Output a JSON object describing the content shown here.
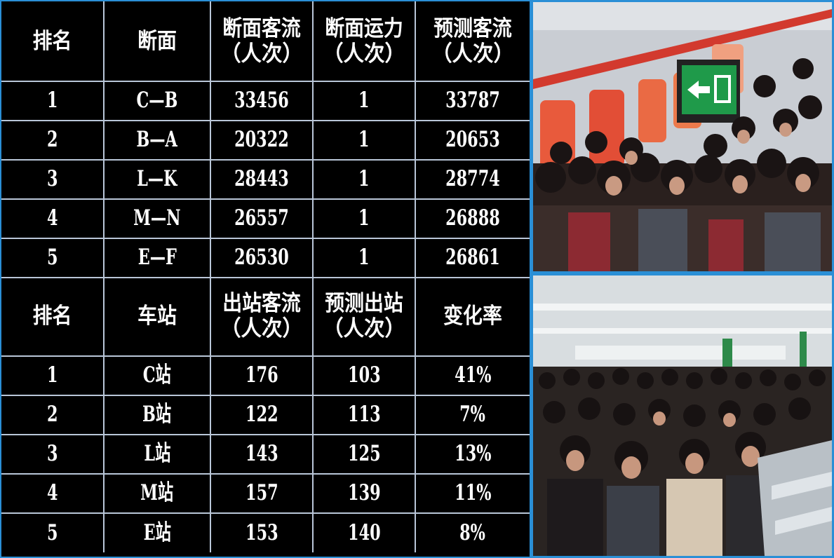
{
  "section_flow": {
    "headers": [
      {
        "line1": "排名",
        "line2": ""
      },
      {
        "line1": "断面",
        "line2": ""
      },
      {
        "line1": "断面客流",
        "line2": "（人次）"
      },
      {
        "line1": "断面运力",
        "line2": "（人次）"
      },
      {
        "line1": "预测客流",
        "line2": "（人次）"
      }
    ],
    "rows": [
      [
        "1",
        "C—B",
        "33456",
        "1",
        "33787"
      ],
      [
        "2",
        "B—A",
        "20322",
        "1",
        "20653"
      ],
      [
        "3",
        "L—K",
        "28443",
        "1",
        "28774"
      ],
      [
        "4",
        "M—N",
        "26557",
        "1",
        "26888"
      ],
      [
        "5",
        "E—F",
        "26530",
        "1",
        "26861"
      ]
    ]
  },
  "station_exit": {
    "headers": [
      {
        "line1": "排名",
        "line2": ""
      },
      {
        "line1": "车站",
        "line2": ""
      },
      {
        "line1": "出站客流",
        "line2": "（人次）"
      },
      {
        "line1": "预测出站",
        "line2": "（人次）"
      },
      {
        "line1": "变化率",
        "line2": ""
      }
    ],
    "rows": [
      [
        "1",
        "C站",
        "176",
        "103",
        "41%"
      ],
      [
        "2",
        "B站",
        "122",
        "113",
        "7%"
      ],
      [
        "3",
        "L站",
        "143",
        "125",
        "13%"
      ],
      [
        "4",
        "M站",
        "157",
        "139",
        "11%"
      ],
      [
        "5",
        "E站",
        "153",
        "140",
        "8%"
      ]
    ]
  },
  "colors": {
    "table_background": "#000000",
    "table_text": "#ffffff",
    "grid_lines": "#b9c6d8",
    "frame_border": "#2a8fd6"
  },
  "photos": {
    "top_icon": "crowded-train-platform-photo",
    "bottom_icon": "crowded-station-gates-photo"
  }
}
